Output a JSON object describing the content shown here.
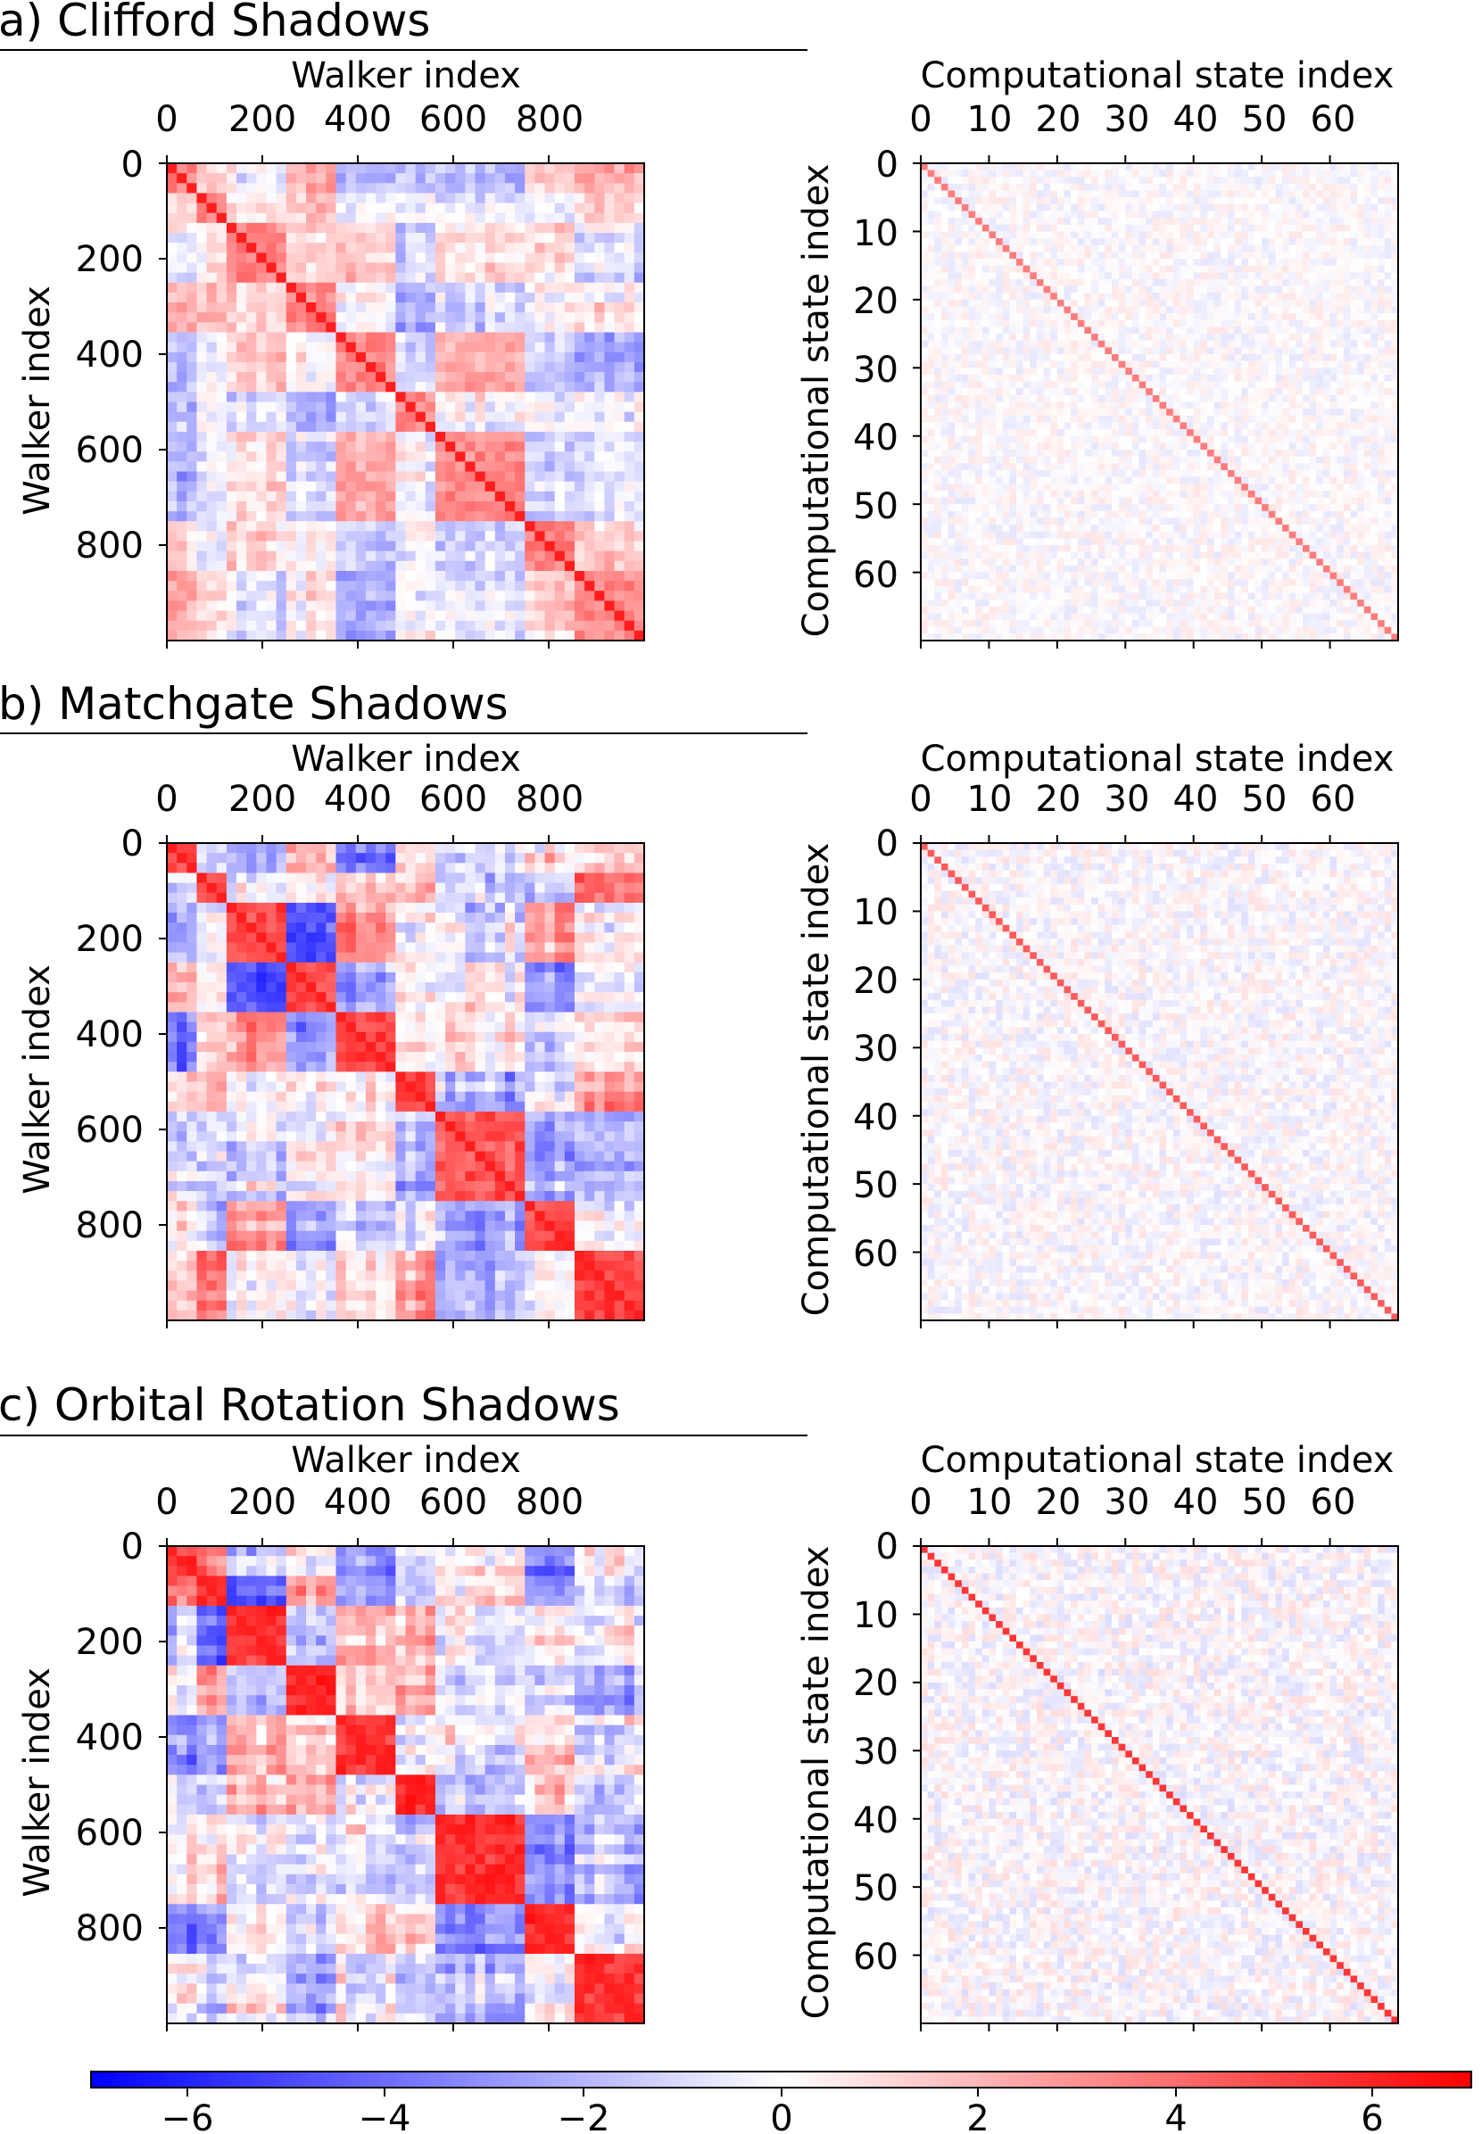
{
  "colormap": {
    "name": "bwr",
    "low": "#0000ff",
    "mid": "#ffffff",
    "high": "#ff0000"
  },
  "chart_data": [
    {
      "panel": "a",
      "section_title": "a) Clifford Shadows",
      "walker": {
        "type": "heatmap",
        "xlabel": "Walker index",
        "ylabel": "Walker index",
        "xlim": [
          0,
          1000
        ],
        "ylim": [
          0,
          1000
        ],
        "xticks": [
          0,
          200,
          400,
          600,
          800
        ],
        "yticks": [
          0,
          200,
          400,
          600,
          800
        ],
        "xtick_labels": [
          "0",
          "200",
          "400",
          "600",
          "800"
        ],
        "ytick_labels": [
          "0",
          "200",
          "400",
          "600",
          "800"
        ],
        "n_cells": 1000,
        "intensity": 0.55,
        "seed": 11
      },
      "state": {
        "type": "heatmap",
        "xlabel": "Computational state index",
        "ylabel": "Computational state index",
        "xlim": [
          0,
          70
        ],
        "ylim": [
          0,
          70
        ],
        "xticks": [
          0,
          10,
          20,
          30,
          40,
          50,
          60
        ],
        "yticks": [
          0,
          10,
          20,
          30,
          40,
          50,
          60
        ],
        "xtick_labels": [
          "0",
          "10",
          "20",
          "30",
          "40",
          "50",
          "60"
        ],
        "ytick_labels": [
          "0",
          "10",
          "20",
          "30",
          "40",
          "50",
          "60"
        ],
        "n_cells": 70,
        "diagonal_value": 3.6,
        "noise": 0.5,
        "seed": 21
      }
    },
    {
      "panel": "b",
      "section_title": "b) Matchgate Shadows",
      "walker": {
        "type": "heatmap",
        "xlabel": "Walker index",
        "ylabel": "Walker index",
        "xlim": [
          0,
          1000
        ],
        "ylim": [
          0,
          1000
        ],
        "xticks": [
          0,
          200,
          400,
          600,
          800
        ],
        "yticks": [
          0,
          200,
          400,
          600,
          800
        ],
        "xtick_labels": [
          "0",
          "200",
          "400",
          "600",
          "800"
        ],
        "ytick_labels": [
          "0",
          "200",
          "400",
          "600",
          "800"
        ],
        "n_cells": 1000,
        "intensity": 0.85,
        "seed": 12
      },
      "state": {
        "type": "heatmap",
        "xlabel": "Computational state index",
        "ylabel": "Computational state index",
        "xlim": [
          0,
          70
        ],
        "ylim": [
          0,
          70
        ],
        "xticks": [
          0,
          10,
          20,
          30,
          40,
          50,
          60
        ],
        "yticks": [
          0,
          10,
          20,
          30,
          40,
          50,
          60
        ],
        "xtick_labels": [
          "0",
          "10",
          "20",
          "30",
          "40",
          "50",
          "60"
        ],
        "ytick_labels": [
          "0",
          "10",
          "20",
          "30",
          "40",
          "50",
          "60"
        ],
        "n_cells": 70,
        "diagonal_value": 4.5,
        "noise": 0.6,
        "seed": 22
      }
    },
    {
      "panel": "c",
      "section_title": "c) Orbital Rotation Shadows",
      "walker": {
        "type": "heatmap",
        "xlabel": "Walker index",
        "ylabel": "Walker index",
        "xlim": [
          0,
          1000
        ],
        "ylim": [
          0,
          1000
        ],
        "xticks": [
          0,
          200,
          400,
          600,
          800
        ],
        "yticks": [
          0,
          200,
          400,
          600,
          800
        ],
        "xtick_labels": [
          "0",
          "200",
          "400",
          "600",
          "800"
        ],
        "ytick_labels": [
          "0",
          "200",
          "400",
          "600",
          "800"
        ],
        "n_cells": 1000,
        "intensity": 0.95,
        "seed": 13
      },
      "state": {
        "type": "heatmap",
        "xlabel": "Computational state index",
        "ylabel": "Computational state index",
        "xlim": [
          0,
          70
        ],
        "ylim": [
          0,
          70
        ],
        "xticks": [
          0,
          10,
          20,
          30,
          40,
          50,
          60
        ],
        "yticks": [
          0,
          10,
          20,
          30,
          40,
          50,
          60
        ],
        "xtick_labels": [
          "0",
          "10",
          "20",
          "30",
          "40",
          "50",
          "60"
        ],
        "ytick_labels": [
          "0",
          "10",
          "20",
          "30",
          "40",
          "50",
          "60"
        ],
        "n_cells": 70,
        "diagonal_value": 5.5,
        "noise": 0.7,
        "seed": 23
      }
    }
  ],
  "colorbar": {
    "vmin": -7,
    "vmax": 7,
    "ticks": [
      -6,
      -4,
      -2,
      0,
      2,
      4,
      6
    ],
    "tick_labels": [
      "−6",
      "−4",
      "−2",
      "0",
      "2",
      "4",
      "6"
    ]
  }
}
